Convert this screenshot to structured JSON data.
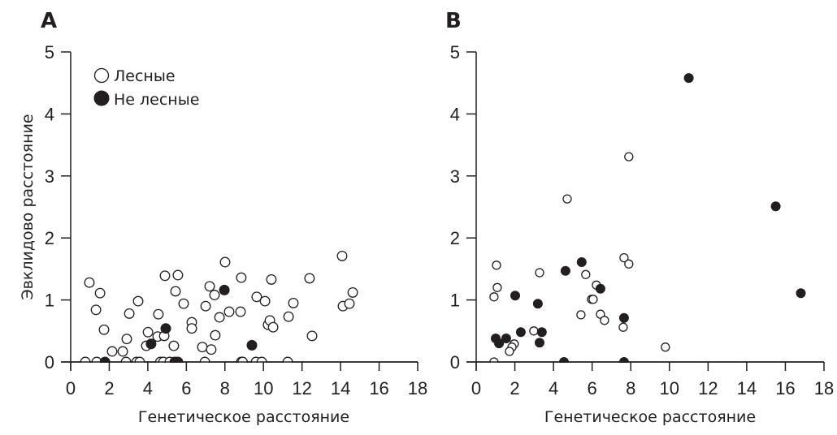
{
  "chart_data": [
    {
      "type": "scatter",
      "panel_label": "A",
      "xlabel": "Генетическое расстояние",
      "ylabel": "Эвклидово расстояние",
      "xlim": [
        0,
        18
      ],
      "ylim": [
        0,
        5
      ],
      "x_ticks": [
        "0",
        "2",
        "4",
        "6",
        "8",
        "10",
        "12",
        "14",
        "16",
        "18"
      ],
      "y_ticks": [
        "0",
        "1",
        "2",
        "3",
        "4",
        "5"
      ],
      "grid": false,
      "legend": {
        "placement": "top-left",
        "entries": [
          {
            "label": "Лесные",
            "marker": "open-circle"
          },
          {
            "label": "Не лесные",
            "marker": "filled-circle"
          }
        ]
      },
      "series": [
        {
          "name": "Лесные",
          "marker": "open-circle",
          "points": [
            [
              0.97,
              1.28
            ],
            [
              1.52,
              1.11
            ],
            [
              1.31,
              0.84
            ],
            [
              1.73,
              0.52
            ],
            [
              2.15,
              0.17
            ],
            [
              2.7,
              0.17
            ],
            [
              2.91,
              0.37
            ],
            [
              3.04,
              0.78
            ],
            [
              3.5,
              0.98
            ],
            [
              4.55,
              0.77
            ],
            [
              4.01,
              0.48
            ],
            [
              3.92,
              0.26
            ],
            [
              4.51,
              0.41
            ],
            [
              4.85,
              0.42
            ],
            [
              4.89,
              1.39
            ],
            [
              5.56,
              1.4
            ],
            [
              5.44,
              1.14
            ],
            [
              5.86,
              0.94
            ],
            [
              5.35,
              0.26
            ],
            [
              6.28,
              0.64
            ],
            [
              6.28,
              0.54
            ],
            [
              8.01,
              1.61
            ],
            [
              8.85,
              1.36
            ],
            [
              7.21,
              1.22
            ],
            [
              7.46,
              1.08
            ],
            [
              7.0,
              0.9
            ],
            [
              7.72,
              0.72
            ],
            [
              8.22,
              0.81
            ],
            [
              8.81,
              0.81
            ],
            [
              7.5,
              0.43
            ],
            [
              6.83,
              0.24
            ],
            [
              7.29,
              0.2
            ],
            [
              9.65,
              1.05
            ],
            [
              10.08,
              0.98
            ],
            [
              10.41,
              1.33
            ],
            [
              10.24,
              0.6
            ],
            [
              10.33,
              0.67
            ],
            [
              10.5,
              0.56
            ],
            [
              11.3,
              0.73
            ],
            [
              11.55,
              0.95
            ],
            [
              12.39,
              1.35
            ],
            [
              12.52,
              0.42
            ],
            [
              14.08,
              1.71
            ],
            [
              14.12,
              0.9
            ],
            [
              14.46,
              0.94
            ],
            [
              14.63,
              1.12
            ],
            [
              0.76,
              0
            ],
            [
              1.35,
              0
            ],
            [
              2.87,
              0
            ],
            [
              3.42,
              0
            ],
            [
              3.58,
              0
            ],
            [
              4.65,
              0
            ],
            [
              4.81,
              0
            ],
            [
              5.14,
              0
            ],
            [
              6.96,
              0
            ],
            [
              8.85,
              0
            ],
            [
              8.92,
              0
            ],
            [
              9.61,
              0
            ],
            [
              9.91,
              0
            ],
            [
              11.26,
              0
            ]
          ]
        },
        {
          "name": "Не лесные",
          "marker": "filled-circle",
          "points": [
            [
              4.17,
              0.29
            ],
            [
              4.93,
              0.54
            ],
            [
              7.97,
              1.16
            ],
            [
              9.4,
              0.27
            ],
            [
              1.78,
              0
            ],
            [
              5.4,
              0
            ],
            [
              5.56,
              0
            ]
          ]
        }
      ]
    },
    {
      "type": "scatter",
      "panel_label": "B",
      "xlabel": "Генетическое расстояние",
      "ylabel": "",
      "xlim": [
        0,
        18
      ],
      "ylim": [
        0,
        5
      ],
      "x_ticks": [
        "0",
        "2",
        "4",
        "6",
        "8",
        "10",
        "12",
        "14",
        "16",
        "18"
      ],
      "y_ticks": [
        "0",
        "1",
        "2",
        "3",
        "4",
        "5"
      ],
      "grid": false,
      "series": [
        {
          "name": "Лесные",
          "marker": "open-circle",
          "points": [
            [
              1.05,
              1.56
            ],
            [
              1.09,
              1.2
            ],
            [
              0.92,
              1.05
            ],
            [
              3.28,
              1.44
            ],
            [
              5.67,
              1.41
            ],
            [
              5.97,
              1.01
            ],
            [
              6.05,
              1.01
            ],
            [
              6.22,
              1.24
            ],
            [
              5.42,
              0.76
            ],
            [
              6.43,
              0.77
            ],
            [
              6.64,
              0.67
            ],
            [
              7.61,
              0.56
            ],
            [
              7.65,
              1.68
            ],
            [
              7.9,
              1.58
            ],
            [
              9.79,
              0.24
            ],
            [
              7.9,
              3.31
            ],
            [
              4.71,
              2.63
            ],
            [
              2.98,
              0.5
            ],
            [
              1.97,
              0.29
            ],
            [
              1.85,
              0.24
            ],
            [
              1.72,
              0.17
            ],
            [
              0.92,
              0
            ]
          ]
        },
        {
          "name": "Не лесные",
          "marker": "filled-circle",
          "points": [
            [
              11.0,
              4.58
            ],
            [
              15.5,
              2.51
            ],
            [
              16.8,
              1.11
            ],
            [
              5.46,
              1.61
            ],
            [
              4.62,
              1.47
            ],
            [
              6.43,
              1.18
            ],
            [
              2.02,
              1.07
            ],
            [
              3.19,
              0.94
            ],
            [
              7.65,
              0.71
            ],
            [
              1.01,
              0.38
            ],
            [
              1.18,
              0.3
            ],
            [
              1.55,
              0.38
            ],
            [
              2.31,
              0.48
            ],
            [
              3.4,
              0.48
            ],
            [
              3.28,
              0.31
            ],
            [
              4.54,
              0
            ],
            [
              7.65,
              0
            ]
          ]
        }
      ]
    }
  ]
}
